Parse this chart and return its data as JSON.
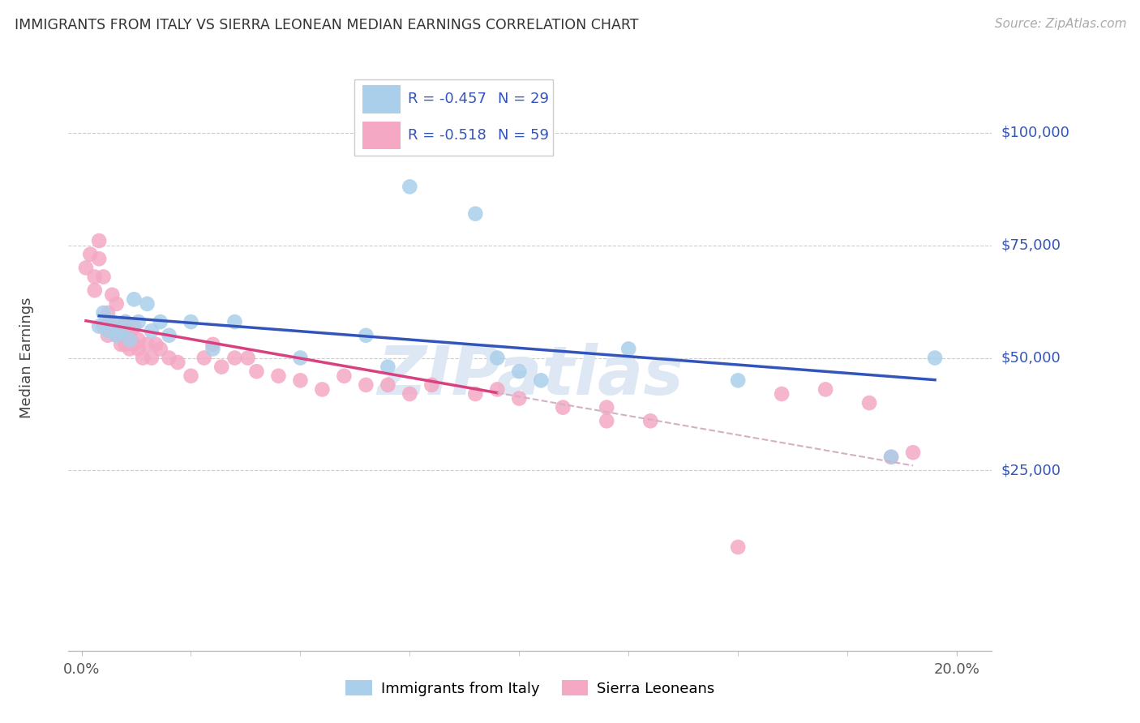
{
  "title": "IMMIGRANTS FROM ITALY VS SIERRA LEONEAN MEDIAN EARNINGS CORRELATION CHART",
  "source": "Source: ZipAtlas.com",
  "xlabel_tick_vals": [
    0.0,
    0.025,
    0.05,
    0.075,
    0.1,
    0.125,
    0.15,
    0.175,
    0.2
  ],
  "xlabel_label_vals": [
    0.0,
    0.2
  ],
  "xlabel_label_texts": [
    "0.0%",
    "20.0%"
  ],
  "ylabel": "Median Earnings",
  "ylabel_right_vals": [
    100000,
    75000,
    50000,
    25000
  ],
  "ylabel_right_labels": [
    "$100,000",
    "$75,000",
    "$50,000",
    "$25,000"
  ],
  "xlim": [
    -0.003,
    0.208
  ],
  "ylim": [
    -15000,
    115000
  ],
  "legend_italy_R": "R = -0.457",
  "legend_italy_N": "N = 29",
  "legend_sl_R": "R = -0.518",
  "legend_sl_N": "N = 59",
  "legend_italy_label": "Immigrants from Italy",
  "legend_sl_label": "Sierra Leoneans",
  "italy_dot_color": "#aacfea",
  "sl_dot_color": "#f4a8c4",
  "trendline_italy_color": "#3355bb",
  "trendline_sl_solid_color": "#d94080",
  "trendline_sl_dashed_color": "#d4b0c4",
  "watermark_color": "#dde8f4",
  "italy_x": [
    0.004,
    0.005,
    0.006,
    0.007,
    0.008,
    0.009,
    0.01,
    0.011,
    0.012,
    0.013,
    0.015,
    0.016,
    0.018,
    0.02,
    0.025,
    0.03,
    0.035,
    0.05,
    0.065,
    0.07,
    0.075,
    0.09,
    0.095,
    0.1,
    0.105,
    0.125,
    0.15,
    0.185,
    0.195
  ],
  "italy_y": [
    57000,
    60000,
    56000,
    58000,
    55000,
    56000,
    58000,
    54000,
    63000,
    58000,
    62000,
    56000,
    58000,
    55000,
    58000,
    52000,
    58000,
    50000,
    55000,
    48000,
    88000,
    82000,
    50000,
    47000,
    45000,
    52000,
    45000,
    28000,
    50000
  ],
  "sl_x": [
    0.001,
    0.002,
    0.003,
    0.003,
    0.004,
    0.004,
    0.005,
    0.005,
    0.006,
    0.006,
    0.007,
    0.007,
    0.008,
    0.008,
    0.009,
    0.009,
    0.01,
    0.01,
    0.011,
    0.011,
    0.012,
    0.012,
    0.013,
    0.013,
    0.014,
    0.015,
    0.016,
    0.017,
    0.018,
    0.02,
    0.022,
    0.025,
    0.028,
    0.03,
    0.032,
    0.035,
    0.038,
    0.04,
    0.045,
    0.05,
    0.055,
    0.06,
    0.065,
    0.07,
    0.075,
    0.08,
    0.09,
    0.095,
    0.1,
    0.11,
    0.12,
    0.13,
    0.15,
    0.16,
    0.17,
    0.18,
    0.185,
    0.19,
    0.12
  ],
  "sl_y": [
    70000,
    73000,
    68000,
    65000,
    72000,
    76000,
    68000,
    57000,
    60000,
    55000,
    57000,
    64000,
    55000,
    62000,
    55000,
    53000,
    58000,
    53000,
    55000,
    52000,
    57000,
    53000,
    54000,
    52000,
    50000,
    53000,
    50000,
    53000,
    52000,
    50000,
    49000,
    46000,
    50000,
    53000,
    48000,
    50000,
    50000,
    47000,
    46000,
    45000,
    43000,
    46000,
    44000,
    44000,
    42000,
    44000,
    42000,
    43000,
    41000,
    39000,
    39000,
    36000,
    8000,
    42000,
    43000,
    40000,
    28000,
    29000,
    36000
  ],
  "sl_trend_solid_end": 0.095,
  "italy_trend_start": 0.004,
  "italy_trend_end": 0.195
}
